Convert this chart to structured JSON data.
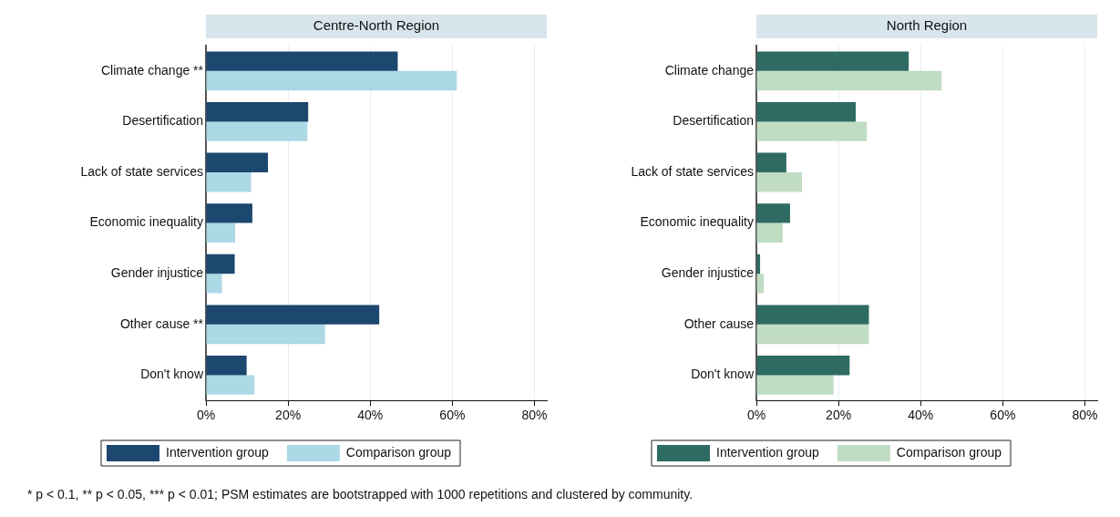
{
  "chart_data": [
    {
      "type": "bar",
      "orientation": "horizontal",
      "title": "Centre-North Region",
      "categories": [
        "Climate change **",
        "Desertification",
        "Lack of state services",
        "Economic inequality",
        "Gender injustice",
        "Other cause **",
        "Don't know"
      ],
      "series": [
        {
          "name": "Intervention group",
          "color": "#1c4870",
          "values": [
            46.7,
            24.9,
            15.1,
            11.3,
            7.0,
            42.2,
            9.9
          ]
        },
        {
          "name": "Comparison group",
          "color": "#add8e6",
          "values": [
            61.1,
            24.7,
            11.0,
            7.1,
            3.9,
            29.0,
            11.8
          ]
        }
      ],
      "xlim": [
        0,
        83
      ],
      "xticks": [
        {
          "value": 0,
          "label": "0%"
        },
        {
          "value": 20,
          "label": "20%"
        },
        {
          "value": 40,
          "label": "40%"
        },
        {
          "value": 60,
          "label": "60%"
        },
        {
          "value": 80,
          "label": "80%"
        }
      ],
      "grid": "x",
      "legend": "bottom",
      "annotations": [
        "* p < 0.1, ** p < 0.05, *** p < 0.01; PSM estimates are bootstrapped with 1000 repetitions and clustered by community."
      ]
    },
    {
      "type": "bar",
      "orientation": "horizontal",
      "title": "North Region",
      "categories": [
        "Climate change",
        "Desertification",
        "Lack of state services",
        "Economic inequality",
        "Gender injustice",
        "Other cause",
        "Don't know"
      ],
      "series": [
        {
          "name": "Intervention group",
          "color": "#2e6b62",
          "values": [
            37.1,
            24.2,
            7.3,
            8.2,
            0.9,
            27.4,
            22.7
          ]
        },
        {
          "name": "Comparison group",
          "color": "#c0dcc2",
          "values": [
            45.1,
            26.9,
            11.1,
            6.4,
            1.8,
            27.4,
            18.8
          ]
        }
      ],
      "xlim": [
        0,
        83
      ],
      "xticks": [
        {
          "value": 0,
          "label": "0%"
        },
        {
          "value": 20,
          "label": "20%"
        },
        {
          "value": 40,
          "label": "40%"
        },
        {
          "value": 60,
          "label": "60%"
        },
        {
          "value": 80,
          "label": "80%"
        }
      ],
      "grid": "x",
      "legend": "bottom"
    }
  ]
}
